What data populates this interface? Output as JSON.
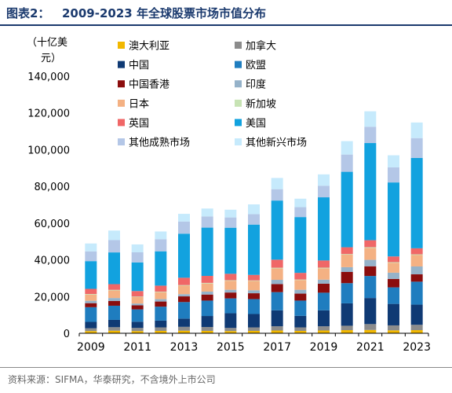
{
  "figure": {
    "label": "图表2：",
    "title": "2009-2023 年全球股票市场市值分布",
    "source": "资料来源：SIFMA，华泰研究，不含境外上市公司"
  },
  "chart_data": {
    "type": "bar",
    "stacked": true,
    "ylabel_lines": [
      "（十亿美",
      "元）"
    ],
    "ylim": [
      0,
      140000
    ],
    "yticks": [
      "0",
      "20,000",
      "40,000",
      "60,000",
      "80,000",
      "100,000",
      "120,000",
      "140,000"
    ],
    "ytick_values": [
      0,
      20000,
      40000,
      60000,
      80000,
      100000,
      120000,
      140000
    ],
    "x": [
      2009,
      2010,
      2011,
      2012,
      2013,
      2014,
      2015,
      2016,
      2017,
      2018,
      2019,
      2020,
      2021,
      2022,
      2023
    ],
    "xticks": [
      "2009",
      "2011",
      "2013",
      "2015",
      "2017",
      "2019",
      "2021",
      "2023"
    ],
    "xtick_values": [
      2009,
      2011,
      2013,
      2015,
      2017,
      2019,
      2021,
      2023
    ],
    "grid": false,
    "legend_position": "top-left",
    "series": [
      {
        "name": "澳大利亚",
        "color": "#f2b800",
        "values": [
          1200,
          1400,
          1200,
          1300,
          1400,
          1300,
          1200,
          1300,
          1500,
          1300,
          1500,
          1700,
          1800,
          1600,
          1700
        ]
      },
      {
        "name": "加拿大",
        "color": "#8c8c8c",
        "values": [
          1500,
          1900,
          1700,
          1900,
          2100,
          2100,
          1700,
          1900,
          2300,
          1900,
          2300,
          2400,
          3200,
          2700,
          2900
        ]
      },
      {
        "name": "中国",
        "color": "#0f3a74",
        "values": [
          3500,
          4000,
          3400,
          3700,
          4500,
          6000,
          8000,
          7300,
          8700,
          6300,
          8700,
          12200,
          14200,
          11700,
          11000
        ]
      },
      {
        "name": "欧盟",
        "color": "#1f7dbf",
        "values": [
          8000,
          7700,
          6700,
          7600,
          9000,
          8400,
          8100,
          8100,
          9900,
          8300,
          9600,
          11000,
          12000,
          9000,
          12500
        ]
      },
      {
        "name": "中国香港",
        "color": "#8b0d0d",
        "values": [
          2200,
          2600,
          2200,
          2800,
          3100,
          3300,
          3200,
          3200,
          4400,
          3800,
          4900,
          6100,
          5300,
          4600,
          4000
        ]
      },
      {
        "name": "印度",
        "color": "#95b2c9",
        "values": [
          1300,
          1600,
          1000,
          1300,
          1200,
          1600,
          1500,
          1600,
          2300,
          2100,
          2200,
          2600,
          3500,
          3400,
          4300
        ]
      },
      {
        "name": "日本",
        "color": "#f4b183",
        "values": [
          3400,
          4100,
          3500,
          3700,
          4600,
          4400,
          4900,
          5100,
          6200,
          5300,
          6200,
          6800,
          6500,
          5400,
          6200
        ]
      },
      {
        "name": "新加坡",
        "color": "#c7e3b4",
        "values": [
          300,
          350,
          300,
          350,
          350,
          350,
          300,
          300,
          400,
          300,
          350,
          350,
          400,
          350,
          400
        ]
      },
      {
        "name": "英国",
        "color": "#f06767",
        "values": [
          2800,
          3100,
          3000,
          3300,
          4000,
          3800,
          3500,
          3000,
          4400,
          3600,
          3900,
          3700,
          3800,
          3100,
          3300
        ]
      },
      {
        "name": "美国",
        "color": "#12a2df",
        "values": [
          15100,
          17300,
          15600,
          18700,
          24000,
          26300,
          25100,
          27400,
          32200,
          30400,
          34400,
          41100,
          52900,
          40300,
          49200
        ]
      },
      {
        "name": "其他成熟市场",
        "color": "#b4c7e7",
        "values": [
          5300,
          6700,
          5500,
          6600,
          6600,
          6100,
          5600,
          5700,
          6200,
          5400,
          6300,
          9400,
          8900,
          8200,
          10800
        ]
      },
      {
        "name": "其他新兴市场",
        "color": "#c6eafc",
        "values": [
          4300,
          5200,
          4300,
          4200,
          4200,
          4300,
          4200,
          5300,
          6100,
          4600,
          6200,
          7300,
          8400,
          6600,
          8500
        ]
      }
    ]
  }
}
